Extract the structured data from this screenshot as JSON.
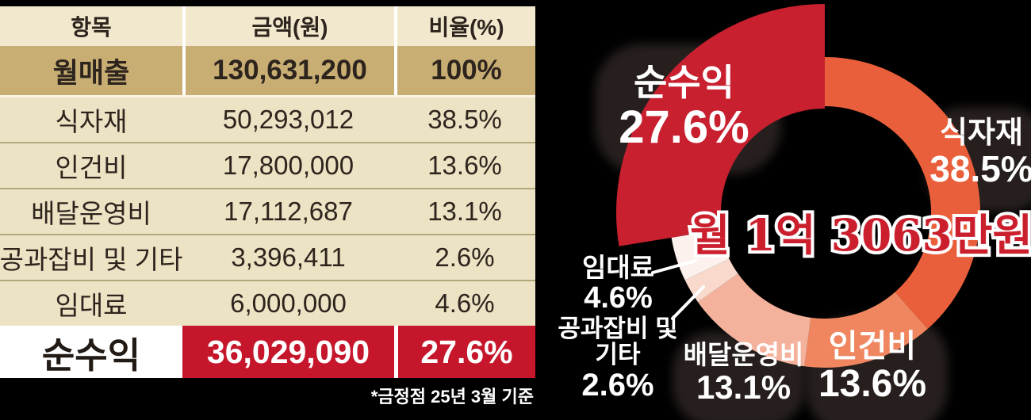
{
  "table": {
    "columns": [
      "항목",
      "금액(원)",
      "비율(%)"
    ],
    "rows": [
      {
        "item": "월매출",
        "amount": "130,631,200",
        "ratio": "100%",
        "style": "sales"
      },
      {
        "item": "식자재",
        "amount": "50,293,012",
        "ratio": "38.5%",
        "style": "normal"
      },
      {
        "item": "인건비",
        "amount": "17,800,000",
        "ratio": "13.6%",
        "style": "normal"
      },
      {
        "item": "배달운영비",
        "amount": "17,112,687",
        "ratio": "13.1%",
        "style": "normal"
      },
      {
        "item": "공과잡비 및 기타",
        "amount": "3,396,411",
        "ratio": "2.6%",
        "style": "normal"
      },
      {
        "item": "임대료",
        "amount": "6,000,000",
        "ratio": "4.6%",
        "style": "normal"
      },
      {
        "item": "순수익",
        "amount": "36,029,090",
        "ratio": "27.6%",
        "style": "profit"
      }
    ],
    "footnote": "*금정점 25년 3월 기준"
  },
  "colors": {
    "table_red": "#c6162c",
    "table_gold_row": "#c9ae74",
    "table_beige_row": "#ece3c5",
    "table_header_bg": "#f1e8ce",
    "background": "#000000",
    "label_text": "#ffffff",
    "center_text_red": "#cb1f2d"
  },
  "chart_data": {
    "type": "pie",
    "style": "donut",
    "title": "",
    "center_label": "월 1억 3063만원",
    "unit": "%",
    "direction": "clockwise",
    "start_angle_deg": 0,
    "legend": "none",
    "slices": [
      {
        "label": "식자재",
        "value": 38.5,
        "color": "#e95f3b"
      },
      {
        "label": "인건비",
        "value": 13.6,
        "color": "#ef8660"
      },
      {
        "label": "배달운영비",
        "value": 13.1,
        "color": "#f4b29d"
      },
      {
        "label": "공과잡비 및 기타",
        "value": 2.6,
        "color": "#f8d9cc"
      },
      {
        "label": "임대료",
        "value": 4.6,
        "color": "#fcf1ec"
      },
      {
        "label": "순수익",
        "value": 27.6,
        "color": "#c8202f",
        "emphasized": true
      }
    ]
  },
  "chart_labels": {
    "sunsuik": {
      "name": "순수익",
      "pct": "27.6%"
    },
    "sikjajae": {
      "name": "식자재",
      "pct": "38.5%"
    },
    "ingeonbi": {
      "name": "인건비",
      "pct": "13.6%"
    },
    "baedal": {
      "name": "배달운영비",
      "pct": "13.1%"
    },
    "gonggwa": {
      "name": "공과잡비 및 기타",
      "pct": "2.6%"
    },
    "imdaeryo": {
      "name": "임대료",
      "pct": "4.6%"
    }
  }
}
